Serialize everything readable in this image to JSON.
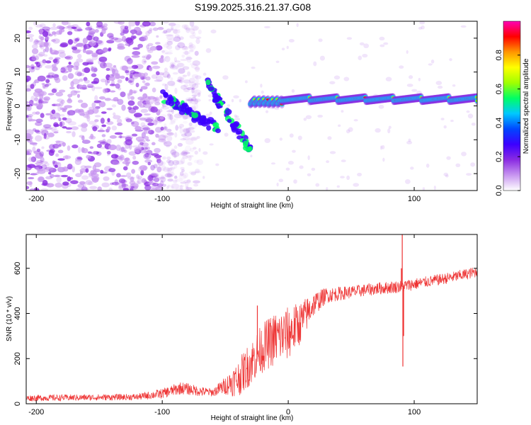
{
  "title": "S199.2025.316.21.37.G08",
  "chart_data": [
    {
      "type": "heatmap",
      "name": "spectrogram",
      "xlabel": "Height of straight line (km)",
      "ylabel": "Frequency (Hz)",
      "xlim": [
        -208,
        150
      ],
      "ylim": [
        -25,
        25
      ],
      "xticks": [
        -200,
        -100,
        0,
        100
      ],
      "yticks": [
        -20,
        -10,
        0,
        10,
        20
      ],
      "colorbar": {
        "label": "Normalized spectral amplitude",
        "range": [
          0,
          1
        ],
        "ticks": [
          "0.0",
          "0.2",
          "0.4",
          "0.6",
          "0.8"
        ],
        "colormap": [
          "#ffffff",
          "#c896f0",
          "#8a2be2",
          "#3c00ff",
          "#0046ff",
          "#00c8ff",
          "#00ff64",
          "#a0ff00",
          "#ffff00",
          "#ff9600",
          "#ff0000",
          "#ff00b4"
        ]
      },
      "features": {
        "noise_region_x": [
          -208,
          -100
        ],
        "descending_arcs": [
          {
            "x": [
              -100,
              -55
            ],
            "y": [
              3,
              -7
            ]
          },
          {
            "x": [
              -65,
              -30
            ],
            "y": [
              7,
              -13
            ]
          }
        ],
        "tone_segments": [
          {
            "x": [
              -30,
              -5
            ],
            "y": [
              0.5,
              2
            ]
          },
          {
            "x": [
              -5,
              150
            ],
            "y": [
              1.5,
              2.5
            ]
          }
        ]
      }
    },
    {
      "type": "line",
      "name": "snr",
      "xlabel": "Height of straight line (km)",
      "ylabel": "SNR (10 * v/v)",
      "xlim": [
        -208,
        150
      ],
      "ylim": [
        0,
        750
      ],
      "xticks": [
        -200,
        -100,
        0,
        100
      ],
      "yticks": [
        0,
        200,
        400,
        600
      ],
      "color": "#ee3333",
      "trend": {
        "x": [
          -208,
          -120,
          -100,
          -85,
          -70,
          -60,
          -50,
          -40,
          -30,
          -20,
          -10,
          0,
          10,
          20,
          30,
          50,
          70,
          90,
          110,
          130,
          150
        ],
        "y": [
          25,
          30,
          45,
          70,
          55,
          50,
          80,
          110,
          180,
          250,
          290,
          310,
          360,
          440,
          480,
          495,
          510,
          520,
          540,
          560,
          585
        ],
        "amp": [
          14,
          14,
          22,
          28,
          22,
          18,
          40,
          80,
          100,
          110,
          120,
          120,
          95,
          55,
          35,
          28,
          28,
          28,
          25,
          25,
          25
        ]
      },
      "spikes": [
        {
          "x": -24.5,
          "y": 435
        },
        {
          "x": 90.5,
          "y": 760
        },
        {
          "x": 91.0,
          "y": 165
        },
        {
          "x": 89.8,
          "y": 600
        },
        {
          "x": 91.6,
          "y": 300
        }
      ]
    }
  ]
}
